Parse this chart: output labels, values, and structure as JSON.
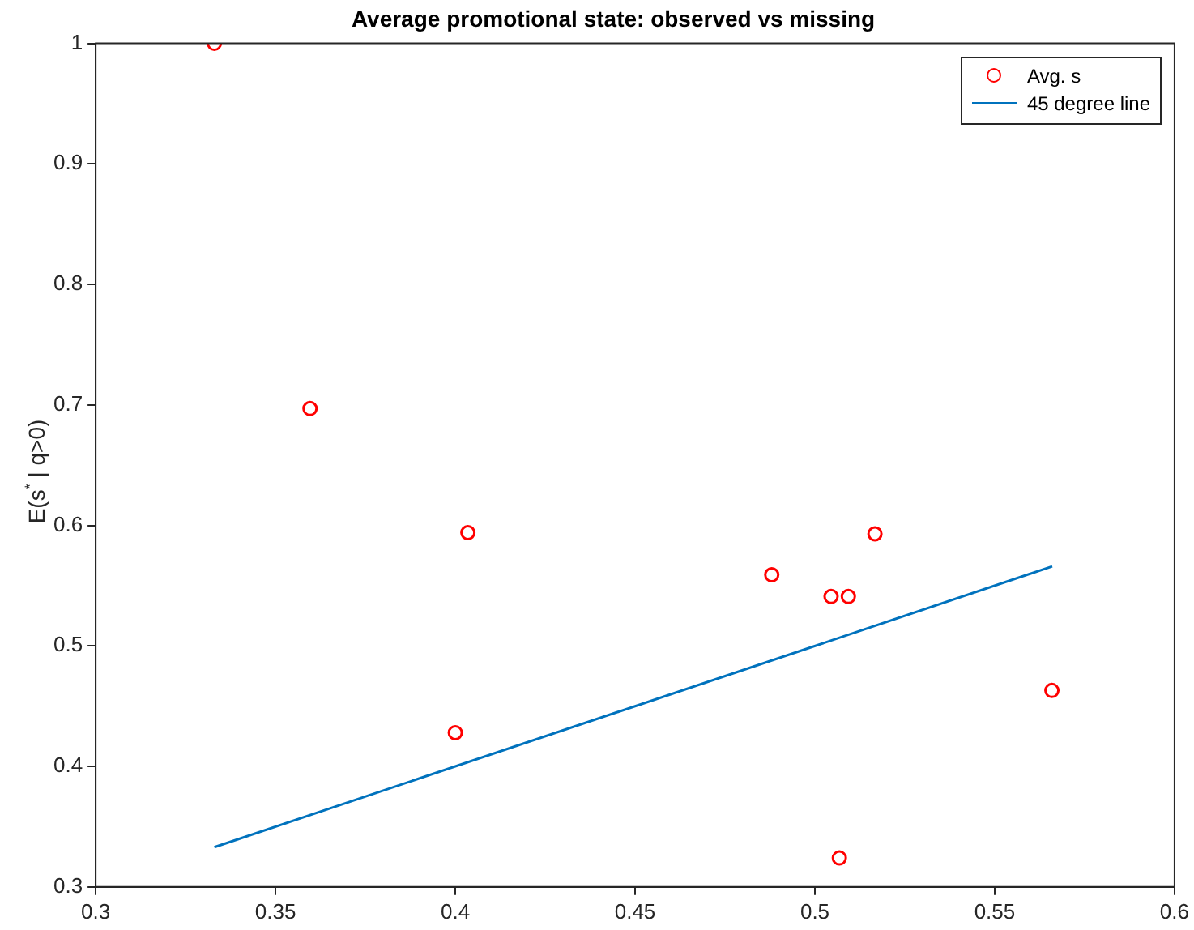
{
  "chart_data": {
    "type": "scatter",
    "title": "Average promotional state: observed vs missing",
    "ylabel": "E(s$^{*}$ | q>0)",
    "xlim": [
      0.3,
      0.6
    ],
    "xticks": [
      0.3,
      0.35,
      0.4,
      0.45,
      0.5,
      0.55,
      0.6
    ],
    "ylim": [
      0.3,
      1
    ],
    "yticks": [
      0.3,
      0.4,
      0.5,
      0.6,
      0.7,
      0.8,
      0.9,
      1
    ],
    "legend": "top right",
    "series": [
      {
        "name": "Avg. s",
        "type": "scatter",
        "color": "#ff0000",
        "marker": "circle",
        "x": [
          0.333,
          0.3596,
          0.4035,
          0.4,
          0.488,
          0.5045,
          0.5093,
          0.5167,
          0.5659,
          0.5068
        ],
        "values": [
          1,
          0.697,
          0.594,
          0.428,
          0.559,
          0.541,
          0.541,
          0.593,
          0.463,
          0.324
        ]
      },
      {
        "name": "45 degree line",
        "type": "line",
        "color": "#0072bd",
        "marker": "none",
        "line_style": "solid",
        "x": [
          0.333,
          0.566
        ],
        "values": [
          0.333,
          0.566
        ]
      }
    ]
  }
}
